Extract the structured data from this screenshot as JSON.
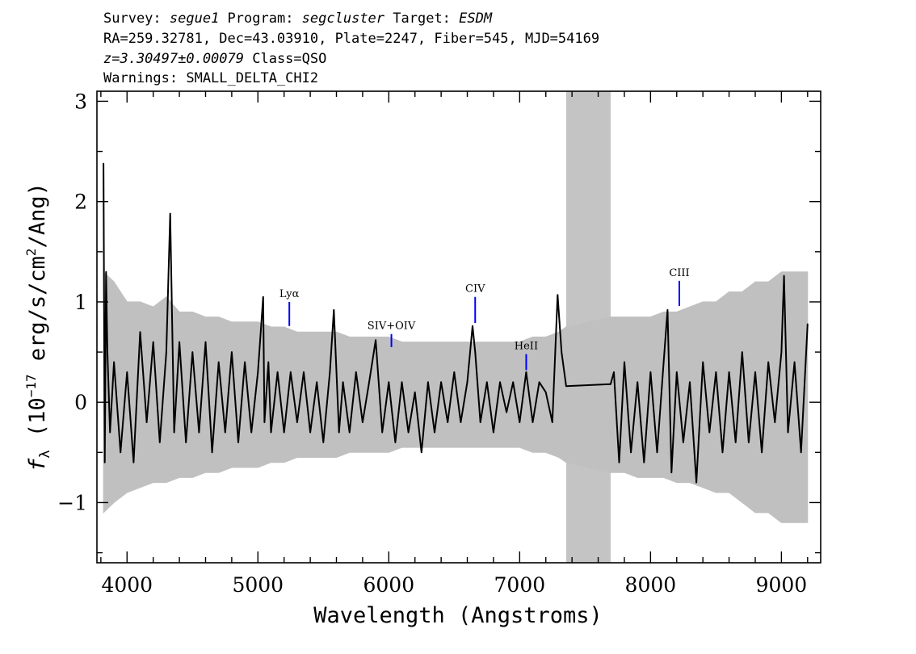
{
  "header": {
    "line1": [
      {
        "text": "Survey: ",
        "italic": false
      },
      {
        "text": "segue1",
        "italic": true
      },
      {
        "text": " Program: ",
        "italic": false
      },
      {
        "text": "segcluster",
        "italic": true
      },
      {
        "text": " Target: ",
        "italic": false
      },
      {
        "text": "ESDM",
        "italic": true
      }
    ],
    "line2": "RA=259.32781, Dec=43.03910, Plate=2247, Fiber=545, MJD=54169",
    "line3": [
      {
        "text": "z=3.30497±0.00079",
        "italic": true
      },
      {
        "text": " Class=QSO",
        "italic": false
      }
    ],
    "line4": "Warnings: SMALL_DELTA_CHI2"
  },
  "chart_data": {
    "type": "line",
    "xlabel": "Wavelength (Angstroms)",
    "ylabel": {
      "f": "f",
      "sub": "λ",
      "pre": " (10",
      "sup": "−17",
      "mid": " erg/s/cm",
      "sup2": "2",
      "post": "/Ang)"
    },
    "xlim": [
      3770,
      9300
    ],
    "ylim": [
      -1.6,
      3.1
    ],
    "x_ticks": [
      4000,
      5000,
      6000,
      7000,
      8000,
      9000
    ],
    "x_tick_labels": [
      "4000",
      "5000",
      "6000",
      "7000",
      "8000",
      "9000"
    ],
    "y_ticks": [
      -1,
      0,
      1,
      2,
      3
    ],
    "y_tick_labels": [
      "−1",
      "0",
      "1",
      "2",
      "3"
    ],
    "masked_region": [
      7355,
      7695
    ],
    "series": [
      {
        "style": "noise-envelope",
        "color": "#c0c0c0",
        "x": [
          3820,
          3900,
          4000,
          4100,
          4200,
          4300,
          4400,
          4500,
          4600,
          4700,
          4800,
          4900,
          5000,
          5100,
          5200,
          5300,
          5400,
          5500,
          5600,
          5700,
          5800,
          5900,
          6000,
          6100,
          6200,
          6300,
          6400,
          6500,
          6600,
          6700,
          6800,
          6900,
          7000,
          7100,
          7200,
          7300,
          7355,
          7695,
          7750,
          7800,
          7900,
          8000,
          8100,
          8200,
          8300,
          8400,
          8500,
          8600,
          8700,
          8800,
          8900,
          9000,
          9100,
          9200
        ],
        "upper": [
          1.3,
          1.2,
          1.0,
          1.0,
          0.95,
          1.05,
          0.9,
          0.9,
          0.85,
          0.85,
          0.8,
          0.8,
          0.8,
          0.75,
          0.75,
          0.7,
          0.7,
          0.7,
          0.7,
          0.65,
          0.65,
          0.65,
          0.65,
          0.6,
          0.6,
          0.6,
          0.6,
          0.6,
          0.6,
          0.6,
          0.6,
          0.6,
          0.6,
          0.65,
          0.65,
          0.7,
          0.75,
          0.85,
          0.85,
          0.85,
          0.85,
          0.85,
          0.9,
          0.9,
          0.95,
          1.0,
          1.0,
          1.1,
          1.1,
          1.2,
          1.2,
          1.3,
          1.3,
          1.3
        ],
        "lower": [
          -1.1,
          -1.0,
          -0.9,
          -0.85,
          -0.8,
          -0.8,
          -0.75,
          -0.75,
          -0.7,
          -0.7,
          -0.65,
          -0.65,
          -0.65,
          -0.6,
          -0.6,
          -0.55,
          -0.55,
          -0.55,
          -0.55,
          -0.5,
          -0.5,
          -0.5,
          -0.5,
          -0.45,
          -0.45,
          -0.45,
          -0.45,
          -0.45,
          -0.45,
          -0.45,
          -0.45,
          -0.45,
          -0.45,
          -0.5,
          -0.5,
          -0.55,
          -0.6,
          -0.7,
          -0.7,
          -0.7,
          -0.75,
          -0.75,
          -0.75,
          -0.8,
          -0.8,
          -0.85,
          -0.9,
          -0.9,
          -1.0,
          -1.1,
          -1.1,
          -1.2,
          -1.2,
          -1.2
        ]
      },
      {
        "style": "flux",
        "color": "#000000",
        "x": [
          3820,
          3830,
          3840,
          3850,
          3870,
          3900,
          3950,
          4000,
          4050,
          4100,
          4150,
          4200,
          4250,
          4300,
          4330,
          4360,
          4400,
          4450,
          4500,
          4550,
          4600,
          4650,
          4700,
          4750,
          4800,
          4850,
          4900,
          4950,
          5000,
          5040,
          5050,
          5080,
          5100,
          5150,
          5200,
          5250,
          5300,
          5350,
          5400,
          5450,
          5500,
          5550,
          5580,
          5620,
          5650,
          5700,
          5750,
          5800,
          5850,
          5900,
          5950,
          6000,
          6050,
          6100,
          6150,
          6200,
          6250,
          6300,
          6350,
          6400,
          6450,
          6500,
          6550,
          6600,
          6640,
          6660,
          6700,
          6750,
          6800,
          6850,
          6900,
          6950,
          7000,
          7050,
          7100,
          7150,
          7200,
          7250,
          7290,
          7320,
          7355,
          7695,
          7720,
          7760,
          7800,
          7850,
          7900,
          7950,
          8000,
          8050,
          8100,
          8130,
          8160,
          8200,
          8250,
          8300,
          8350,
          8400,
          8450,
          8500,
          8550,
          8600,
          8650,
          8700,
          8750,
          8800,
          8850,
          8900,
          8950,
          9000,
          9020,
          9050,
          9100,
          9150,
          9200
        ],
        "y": [
          2.38,
          -0.6,
          1.3,
          0.5,
          -0.3,
          0.4,
          -0.5,
          0.3,
          -0.6,
          0.7,
          -0.2,
          0.6,
          -0.4,
          0.5,
          1.88,
          -0.3,
          0.6,
          -0.4,
          0.5,
          -0.3,
          0.6,
          -0.5,
          0.4,
          -0.3,
          0.5,
          -0.4,
          0.4,
          -0.3,
          0.3,
          1.05,
          -0.2,
          0.4,
          -0.3,
          0.3,
          -0.3,
          0.3,
          -0.2,
          0.3,
          -0.3,
          0.2,
          -0.4,
          0.3,
          0.92,
          -0.3,
          0.2,
          -0.3,
          0.3,
          -0.2,
          0.2,
          0.62,
          -0.3,
          0.2,
          -0.4,
          0.2,
          -0.3,
          0.1,
          -0.5,
          0.2,
          -0.3,
          0.2,
          -0.2,
          0.3,
          -0.2,
          0.2,
          0.76,
          0.5,
          -0.2,
          0.2,
          -0.3,
          0.2,
          -0.1,
          0.2,
          -0.2,
          0.3,
          -0.2,
          0.2,
          0.1,
          -0.2,
          1.07,
          0.5,
          0.16,
          0.18,
          0.3,
          -0.6,
          0.4,
          -0.5,
          0.2,
          -0.6,
          0.3,
          -0.5,
          0.4,
          0.92,
          -0.7,
          0.3,
          -0.4,
          0.2,
          -0.8,
          0.4,
          -0.3,
          0.3,
          -0.5,
          0.3,
          -0.4,
          0.5,
          -0.4,
          0.3,
          -0.5,
          0.4,
          -0.2,
          0.5,
          1.26,
          -0.3,
          0.4,
          -0.5,
          0.78
        ]
      }
    ],
    "emission_lines": [
      {
        "label": "Lyα",
        "x": 5240,
        "y_low": 0.76,
        "y_high": 1.0,
        "color": "#0000ff"
      },
      {
        "label": "SIV+OIV",
        "x": 6020,
        "y_low": 0.55,
        "y_high": 0.68,
        "color": "#0000ff"
      },
      {
        "label": "CIV",
        "x": 6660,
        "y_low": 0.79,
        "y_high": 1.05,
        "color": "#0000ff"
      },
      {
        "label": "HeII",
        "x": 7050,
        "y_low": 0.32,
        "y_high": 0.48,
        "color": "#0000ff"
      },
      {
        "label": "CIII",
        "x": 8220,
        "y_low": 0.96,
        "y_high": 1.21,
        "color": "#0000ff"
      }
    ]
  }
}
